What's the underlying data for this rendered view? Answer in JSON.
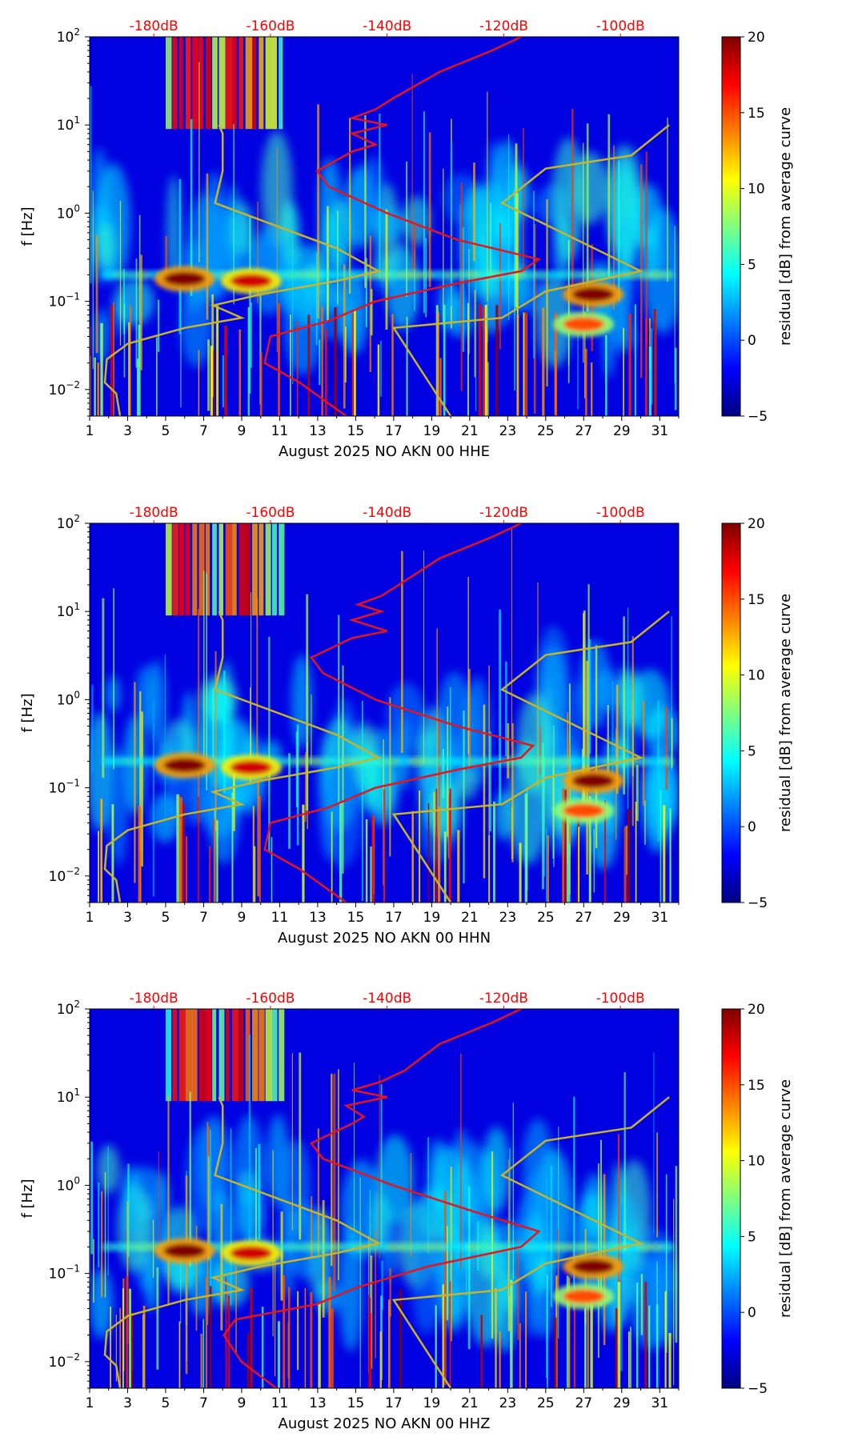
{
  "chart_data": [
    {
      "type": "heatmap",
      "title": "",
      "xlabel": "August 2025 NO AKN 00 HHE",
      "ylabel": "f [Hz]",
      "x_ticks": [
        "1",
        "3",
        "5",
        "7",
        "9",
        "11",
        "13",
        "15",
        "17",
        "19",
        "21",
        "23",
        "25",
        "27",
        "29",
        "31"
      ],
      "x_range": [
        1,
        32
      ],
      "y_ticks": [
        {
          "value": 0.01,
          "base": "10",
          "exp": "−2"
        },
        {
          "value": 0.1,
          "base": "10",
          "exp": "−1"
        },
        {
          "value": 1,
          "base": "10",
          "exp": "0"
        },
        {
          "value": 10,
          "base": "10",
          "exp": "1"
        },
        {
          "value": 100,
          "base": "10",
          "exp": "2"
        }
      ],
      "y_range": [
        0.005,
        100
      ],
      "y_scale": "log",
      "top_axis_ticks": [
        "-180dB",
        "-160dB",
        "-140dB",
        "-120dB",
        "-100dB"
      ],
      "top_axis_values": [
        -180,
        -160,
        -140,
        -120,
        -100
      ],
      "top_axis_range": [
        -191,
        -90
      ],
      "colorbar": {
        "label": "residual [dB] from average curve",
        "range": [
          -5,
          20
        ],
        "ticks": [
          "20",
          "15",
          "10",
          "5",
          "0",
          "−5"
        ]
      },
      "colors": {
        "red_curve": "#e8141b",
        "yellow_curve": "#c8b42a"
      },
      "red_curve_db_freq": [
        [
          -147,
          0.005
        ],
        [
          -155,
          0.012
        ],
        [
          -161,
          0.02
        ],
        [
          -160,
          0.04
        ],
        [
          -150,
          0.06
        ],
        [
          -142,
          0.1
        ],
        [
          -128,
          0.16
        ],
        [
          -117,
          0.22
        ],
        [
          -114,
          0.3
        ],
        [
          -128,
          0.5
        ],
        [
          -140,
          1
        ],
        [
          -150,
          2
        ],
        [
          -152,
          3
        ],
        [
          -146,
          5
        ],
        [
          -142,
          6
        ],
        [
          -146,
          8
        ],
        [
          -140,
          10
        ],
        [
          -146,
          12
        ],
        [
          -142,
          15
        ],
        [
          -139,
          20
        ],
        [
          -131,
          40
        ],
        [
          -122,
          70
        ],
        [
          -117,
          100
        ]
      ],
      "yellow_curve_day_freq": [
        [
          2.6,
          0.005
        ],
        [
          2.4,
          0.009
        ],
        [
          1.8,
          0.012
        ],
        [
          1.9,
          0.022
        ],
        [
          3,
          0.033
        ],
        [
          6,
          0.05
        ],
        [
          9,
          0.065
        ],
        [
          7.5,
          0.09
        ],
        [
          10,
          0.12
        ],
        [
          14,
          0.17
        ],
        [
          16.2,
          0.22
        ],
        [
          14,
          0.4
        ],
        [
          7.6,
          1.3
        ],
        [
          8,
          3
        ],
        [
          8,
          8
        ],
        [
          7.8,
          10
        ]
      ],
      "yellow_curve2_day_freq": [
        [
          20,
          0.005
        ],
        [
          17,
          0.05
        ],
        [
          22.7,
          0.065
        ],
        [
          25,
          0.13
        ],
        [
          30,
          0.22
        ],
        [
          22.7,
          1.3
        ],
        [
          25,
          3.2
        ],
        [
          29.5,
          4.5
        ],
        [
          31.5,
          10
        ]
      ],
      "hotspots": [
        {
          "day": 6,
          "freq": 0.18,
          "residual_db": 20
        },
        {
          "day": 9.5,
          "freq": 0.17,
          "residual_db": 18
        },
        {
          "day": 27.5,
          "freq": 0.12,
          "residual_db": 20
        },
        {
          "day": 27,
          "freq": 0.055,
          "residual_db": 15
        }
      ]
    },
    {
      "type": "heatmap",
      "title": "",
      "xlabel": "August 2025 NO AKN 00 HHN",
      "ylabel": "f [Hz]",
      "x_ticks": [
        "1",
        "3",
        "5",
        "7",
        "9",
        "11",
        "13",
        "15",
        "17",
        "19",
        "21",
        "23",
        "25",
        "27",
        "29",
        "31"
      ],
      "x_range": [
        1,
        32
      ],
      "y_ticks": [
        {
          "value": 0.01,
          "base": "10",
          "exp": "−2"
        },
        {
          "value": 0.1,
          "base": "10",
          "exp": "−1"
        },
        {
          "value": 1,
          "base": "10",
          "exp": "0"
        },
        {
          "value": 10,
          "base": "10",
          "exp": "1"
        },
        {
          "value": 100,
          "base": "10",
          "exp": "2"
        }
      ],
      "y_range": [
        0.005,
        100
      ],
      "y_scale": "log",
      "top_axis_ticks": [
        "-180dB",
        "-160dB",
        "-140dB",
        "-120dB",
        "-100dB"
      ],
      "top_axis_values": [
        -180,
        -160,
        -140,
        -120,
        -100
      ],
      "top_axis_range": [
        -191,
        -90
      ],
      "colorbar": {
        "label": "residual [dB] from average curve",
        "range": [
          -5,
          20
        ],
        "ticks": [
          "20",
          "15",
          "10",
          "5",
          "0",
          "−5"
        ]
      },
      "colors": {
        "red_curve": "#e8141b",
        "yellow_curve": "#c8b42a"
      },
      "red_curve_db_freq": [
        [
          -147,
          0.005
        ],
        [
          -155,
          0.012
        ],
        [
          -161,
          0.02
        ],
        [
          -160,
          0.04
        ],
        [
          -150,
          0.06
        ],
        [
          -142,
          0.1
        ],
        [
          -128,
          0.16
        ],
        [
          -117,
          0.22
        ],
        [
          -115,
          0.3
        ],
        [
          -128,
          0.5
        ],
        [
          -142,
          1
        ],
        [
          -151,
          2
        ],
        [
          -153,
          3
        ],
        [
          -146,
          5
        ],
        [
          -140,
          6
        ],
        [
          -146,
          8
        ],
        [
          -141,
          10
        ],
        [
          -145,
          12
        ],
        [
          -141,
          15
        ],
        [
          -138,
          20
        ],
        [
          -131,
          40
        ],
        [
          -122,
          70
        ],
        [
          -117,
          100
        ]
      ],
      "yellow_curve_day_freq": [
        [
          2.6,
          0.005
        ],
        [
          2.4,
          0.009
        ],
        [
          1.8,
          0.012
        ],
        [
          1.9,
          0.022
        ],
        [
          3,
          0.033
        ],
        [
          6,
          0.05
        ],
        [
          9,
          0.065
        ],
        [
          7.5,
          0.09
        ],
        [
          10,
          0.12
        ],
        [
          14,
          0.17
        ],
        [
          16.2,
          0.22
        ],
        [
          14,
          0.4
        ],
        [
          7.6,
          1.3
        ],
        [
          8,
          3
        ],
        [
          8,
          8
        ],
        [
          7.8,
          10
        ]
      ],
      "yellow_curve2_day_freq": [
        [
          20,
          0.005
        ],
        [
          17,
          0.05
        ],
        [
          22.7,
          0.065
        ],
        [
          25,
          0.13
        ],
        [
          30,
          0.22
        ],
        [
          22.7,
          1.3
        ],
        [
          25,
          3.2
        ],
        [
          29.5,
          4.5
        ],
        [
          31.5,
          10
        ]
      ],
      "hotspots": [
        {
          "day": 6,
          "freq": 0.18,
          "residual_db": 20
        },
        {
          "day": 9.5,
          "freq": 0.17,
          "residual_db": 18
        },
        {
          "day": 27.5,
          "freq": 0.12,
          "residual_db": 20
        },
        {
          "day": 27,
          "freq": 0.055,
          "residual_db": 15
        }
      ]
    },
    {
      "type": "heatmap",
      "title": "",
      "xlabel": "August 2025 NO AKN 00 HHZ",
      "ylabel": "f [Hz]",
      "x_ticks": [
        "1",
        "3",
        "5",
        "7",
        "9",
        "11",
        "13",
        "15",
        "17",
        "19",
        "21",
        "23",
        "25",
        "27",
        "29",
        "31"
      ],
      "x_range": [
        1,
        32
      ],
      "y_ticks": [
        {
          "value": 0.01,
          "base": "10",
          "exp": "−2"
        },
        {
          "value": 0.1,
          "base": "10",
          "exp": "−1"
        },
        {
          "value": 1,
          "base": "10",
          "exp": "0"
        },
        {
          "value": 10,
          "base": "10",
          "exp": "1"
        },
        {
          "value": 100,
          "base": "10",
          "exp": "2"
        }
      ],
      "y_range": [
        0.005,
        100
      ],
      "y_scale": "log",
      "top_axis_ticks": [
        "-180dB",
        "-160dB",
        "-140dB",
        "-120dB",
        "-100dB"
      ],
      "top_axis_values": [
        -180,
        -160,
        -140,
        -120,
        -100
      ],
      "top_axis_range": [
        -191,
        -90
      ],
      "colorbar": {
        "label": "residual [dB] from average curve",
        "range": [
          -5,
          20
        ],
        "ticks": [
          "20",
          "15",
          "10",
          "5",
          "0",
          "−5"
        ]
      },
      "colors": {
        "red_curve": "#e8141b",
        "yellow_curve": "#c8b42a"
      },
      "red_curve_db_freq": [
        [
          -159,
          0.005
        ],
        [
          -165,
          0.01
        ],
        [
          -168,
          0.02
        ],
        [
          -166,
          0.03
        ],
        [
          -152,
          0.045
        ],
        [
          -145,
          0.07
        ],
        [
          -133,
          0.12
        ],
        [
          -117,
          0.2
        ],
        [
          -114,
          0.3
        ],
        [
          -125,
          0.5
        ],
        [
          -139,
          1
        ],
        [
          -151,
          2
        ],
        [
          -153,
          3
        ],
        [
          -146,
          5
        ],
        [
          -144,
          6
        ],
        [
          -147,
          8
        ],
        [
          -140,
          10
        ],
        [
          -146,
          12
        ],
        [
          -141,
          15
        ],
        [
          -137,
          20
        ],
        [
          -131,
          40
        ],
        [
          -122,
          70
        ],
        [
          -117,
          100
        ]
      ],
      "yellow_curve_day_freq": [
        [
          2.6,
          0.005
        ],
        [
          2.4,
          0.009
        ],
        [
          1.8,
          0.012
        ],
        [
          1.9,
          0.022
        ],
        [
          3,
          0.033
        ],
        [
          6,
          0.05
        ],
        [
          9,
          0.065
        ],
        [
          7.5,
          0.09
        ],
        [
          10,
          0.12
        ],
        [
          14,
          0.17
        ],
        [
          16.2,
          0.22
        ],
        [
          14,
          0.4
        ],
        [
          7.6,
          1.3
        ],
        [
          8,
          3
        ],
        [
          8,
          8
        ],
        [
          7.8,
          10
        ]
      ],
      "yellow_curve2_day_freq": [
        [
          20,
          0.005
        ],
        [
          17,
          0.05
        ],
        [
          22.7,
          0.065
        ],
        [
          25,
          0.13
        ],
        [
          30,
          0.22
        ],
        [
          22.7,
          1.3
        ],
        [
          25,
          3.2
        ],
        [
          29.5,
          4.5
        ],
        [
          31.5,
          10
        ]
      ],
      "hotspots": [
        {
          "day": 6,
          "freq": 0.18,
          "residual_db": 20
        },
        {
          "day": 9.5,
          "freq": 0.17,
          "residual_db": 18
        },
        {
          "day": 27.5,
          "freq": 0.12,
          "residual_db": 20
        },
        {
          "day": 27,
          "freq": 0.055,
          "residual_db": 15
        }
      ]
    }
  ]
}
